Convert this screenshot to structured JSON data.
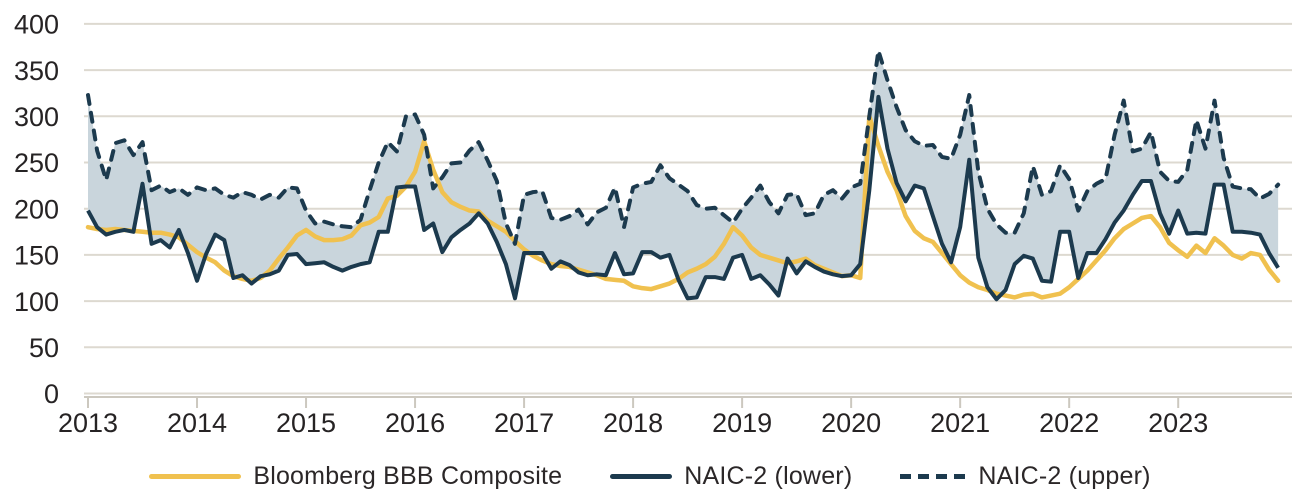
{
  "chart_data": {
    "type": "line",
    "title": "",
    "xlabel": "",
    "ylabel": "",
    "x_unit": "month",
    "x_start": "2013-01",
    "x_end": "2023-12",
    "x_tick_labels": [
      "2013",
      "2014",
      "2015",
      "2016",
      "2017",
      "2018",
      "2019",
      "2020",
      "2021",
      "2022",
      "2023"
    ],
    "y_ticks": [
      0,
      50,
      100,
      150,
      200,
      250,
      300,
      350,
      400
    ],
    "ylim": [
      0,
      400
    ],
    "grid": "horizontal",
    "legend_position": "bottom",
    "band_fill": {
      "between": [
        "NAIC-2 (lower)",
        "NAIC-2 (upper)"
      ],
      "color": "#C9D5DC"
    },
    "series": [
      {
        "name": "Bloomberg BBB Composite",
        "style": "solid",
        "color": "#F0C14F",
        "values": [
          180,
          178,
          177,
          178,
          177,
          176,
          175,
          174,
          174,
          172,
          169,
          161,
          153,
          147,
          142,
          133,
          127,
          124,
          122,
          125,
          133,
          146,
          158,
          171,
          177,
          170,
          166,
          166,
          167,
          171,
          182,
          185,
          191,
          211,
          214,
          224,
          240,
          273,
          242,
          218,
          207,
          202,
          198,
          197,
          187,
          181,
          175,
          165,
          156,
          149,
          144,
          140,
          138,
          137,
          134,
          131,
          128,
          124,
          123,
          122,
          116,
          114,
          113,
          116,
          119,
          124,
          131,
          135,
          140,
          148,
          162,
          180,
          171,
          158,
          150,
          147,
          144,
          141,
          143,
          146,
          139,
          135,
          131,
          127,
          128,
          125,
          300,
          268,
          240,
          220,
          192,
          176,
          168,
          164,
          152,
          140,
          128,
          120,
          115,
          112,
          108,
          106,
          104,
          107,
          108,
          104,
          106,
          108,
          115,
          124,
          133,
          144,
          155,
          168,
          178,
          184,
          190,
          192,
          180,
          163,
          155,
          148,
          160,
          152,
          168,
          160,
          150,
          146,
          152,
          150,
          134,
          122
        ]
      },
      {
        "name": "NAIC-2 (lower)",
        "style": "solid",
        "color": "#1C3A4E",
        "values": [
          198,
          180,
          172,
          175,
          177,
          175,
          227,
          162,
          166,
          158,
          177,
          152,
          122,
          151,
          172,
          166,
          125,
          128,
          119,
          127,
          129,
          133,
          150,
          151,
          140,
          141,
          142,
          137,
          133,
          137,
          140,
          142,
          175,
          175,
          223,
          224,
          224,
          177,
          184,
          153,
          169,
          177,
          184,
          195,
          184,
          164,
          140,
          103,
          152,
          152,
          152,
          135,
          143,
          139,
          131,
          128,
          129,
          128,
          152,
          129,
          130,
          153,
          153,
          147,
          150,
          123,
          103,
          104,
          126,
          126,
          124,
          147,
          150,
          124,
          128,
          118,
          106,
          146,
          130,
          143,
          137,
          132,
          129,
          127,
          128,
          140,
          220,
          321,
          265,
          228,
          208,
          225,
          222,
          192,
          162,
          142,
          180,
          253,
          147,
          115,
          102,
          112,
          140,
          149,
          146,
          122,
          121,
          175,
          175,
          125,
          152,
          152,
          167,
          185,
          198,
          215,
          230,
          230,
          195,
          173,
          198,
          173,
          174,
          173,
          226,
          226,
          175,
          175,
          174,
          172,
          152,
          136
        ]
      },
      {
        "name": "NAIC-2 (upper)",
        "style": "dashed",
        "color": "#1C3A4E",
        "values": [
          323,
          263,
          231,
          271,
          274,
          258,
          272,
          220,
          225,
          218,
          222,
          215,
          223,
          220,
          222,
          215,
          212,
          218,
          215,
          210,
          215,
          212,
          223,
          222,
          198,
          184,
          186,
          183,
          181,
          180,
          188,
          220,
          250,
          272,
          262,
          300,
          302,
          280,
          222,
          234,
          249,
          250,
          263,
          272,
          252,
          230,
          184,
          162,
          215,
          218,
          219,
          190,
          188,
          192,
          199,
          183,
          196,
          201,
          223,
          180,
          223,
          227,
          229,
          247,
          233,
          226,
          219,
          204,
          200,
          201,
          193,
          185,
          200,
          212,
          225,
          207,
          195,
          215,
          216,
          193,
          195,
          215,
          220,
          211,
          223,
          227,
          300,
          371,
          339,
          310,
          285,
          273,
          268,
          269,
          256,
          254,
          280,
          323,
          240,
          200,
          183,
          174,
          174,
          195,
          246,
          215,
          219,
          247,
          232,
          198,
          219,
          227,
          232,
          280,
          317,
          262,
          265,
          283,
          240,
          230,
          229,
          242,
          296,
          265,
          317,
          255,
          224,
          222,
          221,
          211,
          216,
          226
        ]
      }
    ]
  },
  "legend": {
    "items": [
      {
        "label": "Bloomberg BBB Composite",
        "swatch": "yellow-solid-line"
      },
      {
        "label": "NAIC-2 (lower)",
        "swatch": "navy-solid-line"
      },
      {
        "label": "NAIC-2 (upper)",
        "swatch": "navy-dashed-line"
      }
    ]
  },
  "colors": {
    "bbb_line": "#F0C14F",
    "naic_line": "#1C3A4E",
    "band_fill": "#C9D5DC",
    "gridline": "#DDD9D0",
    "axis_line": "#CCC8BF",
    "text": "#262324"
  }
}
